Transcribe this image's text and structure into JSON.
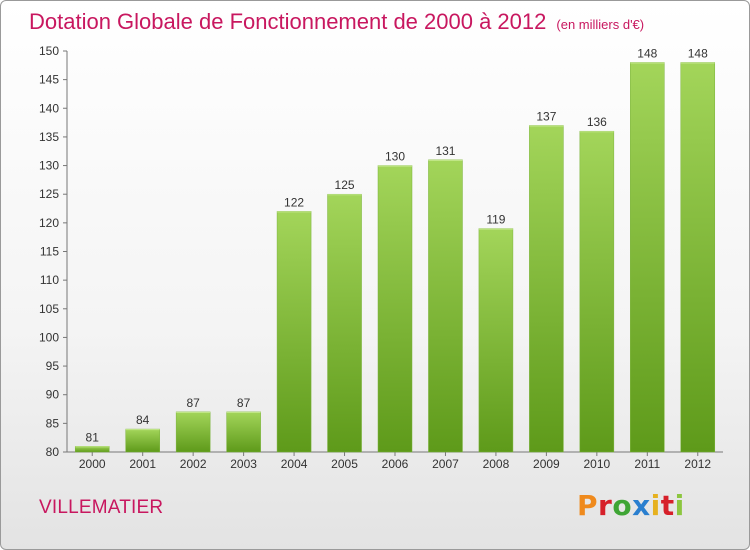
{
  "page": {
    "title": "Dotation Globale de Fonctionnement de 2000 à 2012",
    "unit": "(en milliers d'€)",
    "commune": "VILLEMATIER",
    "brand": "Proxiti",
    "brand_colors": [
      "#ef8a1d",
      "#d6202a",
      "#3fa535",
      "#2a7fcf",
      "#e6b11f",
      "#d6202a",
      "#8cc63f"
    ]
  },
  "chart_data": {
    "type": "bar",
    "categories": [
      "2000",
      "2001",
      "2002",
      "2003",
      "2004",
      "2005",
      "2006",
      "2007",
      "2008",
      "2009",
      "2010",
      "2011",
      "2012"
    ],
    "values": [
      81,
      84,
      87,
      87,
      122,
      125,
      130,
      131,
      119,
      137,
      136,
      148,
      148
    ],
    "ylim": [
      80,
      150
    ],
    "yticks": [
      80,
      85,
      90,
      95,
      100,
      105,
      110,
      115,
      120,
      125,
      130,
      135,
      140,
      145,
      150
    ],
    "grid": false,
    "bar_color_top": "#a3d55a",
    "bar_color_bottom": "#5e9a1a"
  }
}
